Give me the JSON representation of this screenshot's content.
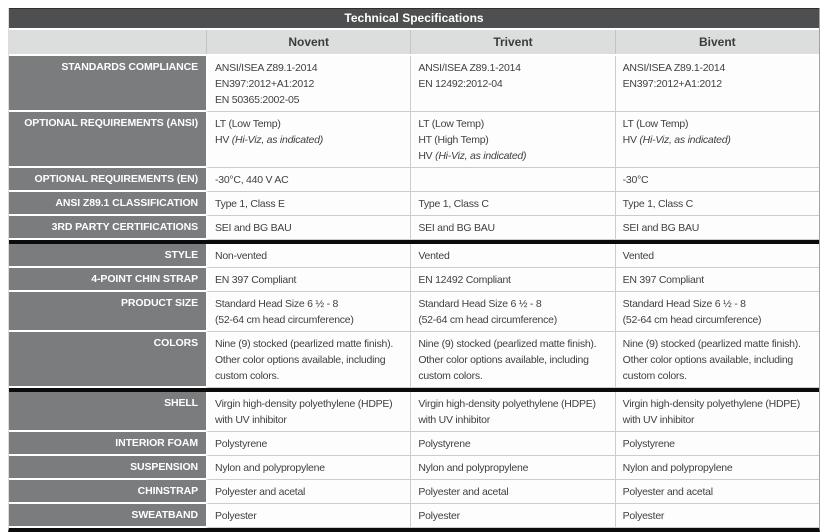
{
  "table": {
    "title": "Technical Specifications",
    "columns": [
      "Novent",
      "Trivent",
      "Bivent"
    ],
    "corner_label": "",
    "colors": {
      "title_bar": "#4d4f50",
      "header_row": "#dcdddd",
      "label_cell": "#7b7c7e",
      "data_cell": "#fdfdfd",
      "group_divider": "#0b0b0b"
    },
    "rows": [
      {
        "label": "STANDARDS COMPLIANCE",
        "group_break": false,
        "cells": [
          [
            "ANSI/ISEA Z89.1-2014",
            "EN397:2012+A1:2012",
            "EN 50365:2002-05"
          ],
          [
            "ANSI/ISEA Z89.1-2014",
            "EN 12492:2012-04"
          ],
          [
            "ANSI/ISEA Z89.1-2014",
            "EN397:2012+A1:2012"
          ]
        ]
      },
      {
        "label": "OPTIONAL REQUIREMENTS (ANSI)",
        "group_break": false,
        "cells": [
          [
            "LT (Low Temp)",
            {
              "pre": "HV ",
              "it": "(Hi-Viz, as indicated)"
            }
          ],
          [
            "LT (Low Temp)",
            "HT (High Temp)",
            {
              "pre": "HV ",
              "it": "(Hi-Viz, as indicated)"
            }
          ],
          [
            "LT (Low Temp)",
            {
              "pre": "HV ",
              "it": "(Hi-Viz, as indicated)"
            }
          ]
        ]
      },
      {
        "label": "OPTIONAL REQUIREMENTS (EN)",
        "group_break": false,
        "cells": [
          [
            "-30°C, 440 V AC"
          ],
          [],
          [
            "-30°C"
          ]
        ]
      },
      {
        "label": "ANSI Z89.1 CLASSIFICATION",
        "group_break": false,
        "cells": [
          [
            "Type 1, Class E"
          ],
          [
            "Type 1, Class C"
          ],
          [
            "Type 1, Class C"
          ]
        ]
      },
      {
        "label": "3RD PARTY CERTIFICATIONS",
        "group_break": false,
        "cells": [
          [
            "SEI and BG BAU"
          ],
          [
            "SEI and BG BAU"
          ],
          [
            "SEI and BG BAU"
          ]
        ]
      },
      {
        "label": "STYLE",
        "group_break": true,
        "cells": [
          [
            "Non-vented"
          ],
          [
            "Vented"
          ],
          [
            "Vented"
          ]
        ]
      },
      {
        "label": "4-POINT CHIN STRAP",
        "group_break": false,
        "cells": [
          [
            "EN 397 Compliant"
          ],
          [
            "EN 12492 Compliant"
          ],
          [
            "EN 397 Compliant"
          ]
        ]
      },
      {
        "label": "PRODUCT SIZE",
        "group_break": false,
        "cells": [
          [
            "Standard Head Size 6 ½ - 8",
            "(52-64 cm head circumference)"
          ],
          [
            "Standard Head Size 6 ½ - 8",
            "(52-64 cm head circumference)"
          ],
          [
            "Standard Head Size 6 ½ - 8",
            "(52-64 cm head circumference)"
          ]
        ]
      },
      {
        "label": "COLORS",
        "group_break": false,
        "cells": [
          [
            "Nine (9) stocked (pearlized matte finish). Other color options available, including custom colors."
          ],
          [
            "Nine (9) stocked (pearlized matte finish). Other color options available, including custom colors."
          ],
          [
            "Nine (9) stocked (pearlized matte finish). Other color options available, including custom colors."
          ]
        ]
      },
      {
        "label": "SHELL",
        "group_break": true,
        "cells": [
          [
            "Virgin high-density polyethylene (HDPE) with UV inhibitor"
          ],
          [
            "Virgin high-density polyethylene (HDPE) with UV inhibitor"
          ],
          [
            "Virgin high-density polyethylene (HDPE) with UV inhibitor"
          ]
        ]
      },
      {
        "label": "INTERIOR FOAM",
        "group_break": false,
        "cells": [
          [
            "Polystyrene"
          ],
          [
            "Polystyrene"
          ],
          [
            "Polystyrene"
          ]
        ]
      },
      {
        "label": "SUSPENSION",
        "group_break": false,
        "cells": [
          [
            "Nylon and polypropylene"
          ],
          [
            "Nylon and polypropylene"
          ],
          [
            "Nylon and polypropylene"
          ]
        ]
      },
      {
        "label": "CHINSTRAP",
        "group_break": false,
        "cells": [
          [
            "Polyester and acetal"
          ],
          [
            "Polyester and acetal"
          ],
          [
            "Polyester and acetal"
          ]
        ]
      },
      {
        "label": "SWEATBAND",
        "group_break": false,
        "cells": [
          [
            "Polyester"
          ],
          [
            "Polyester"
          ],
          [
            "Polyester"
          ]
        ]
      }
    ]
  }
}
